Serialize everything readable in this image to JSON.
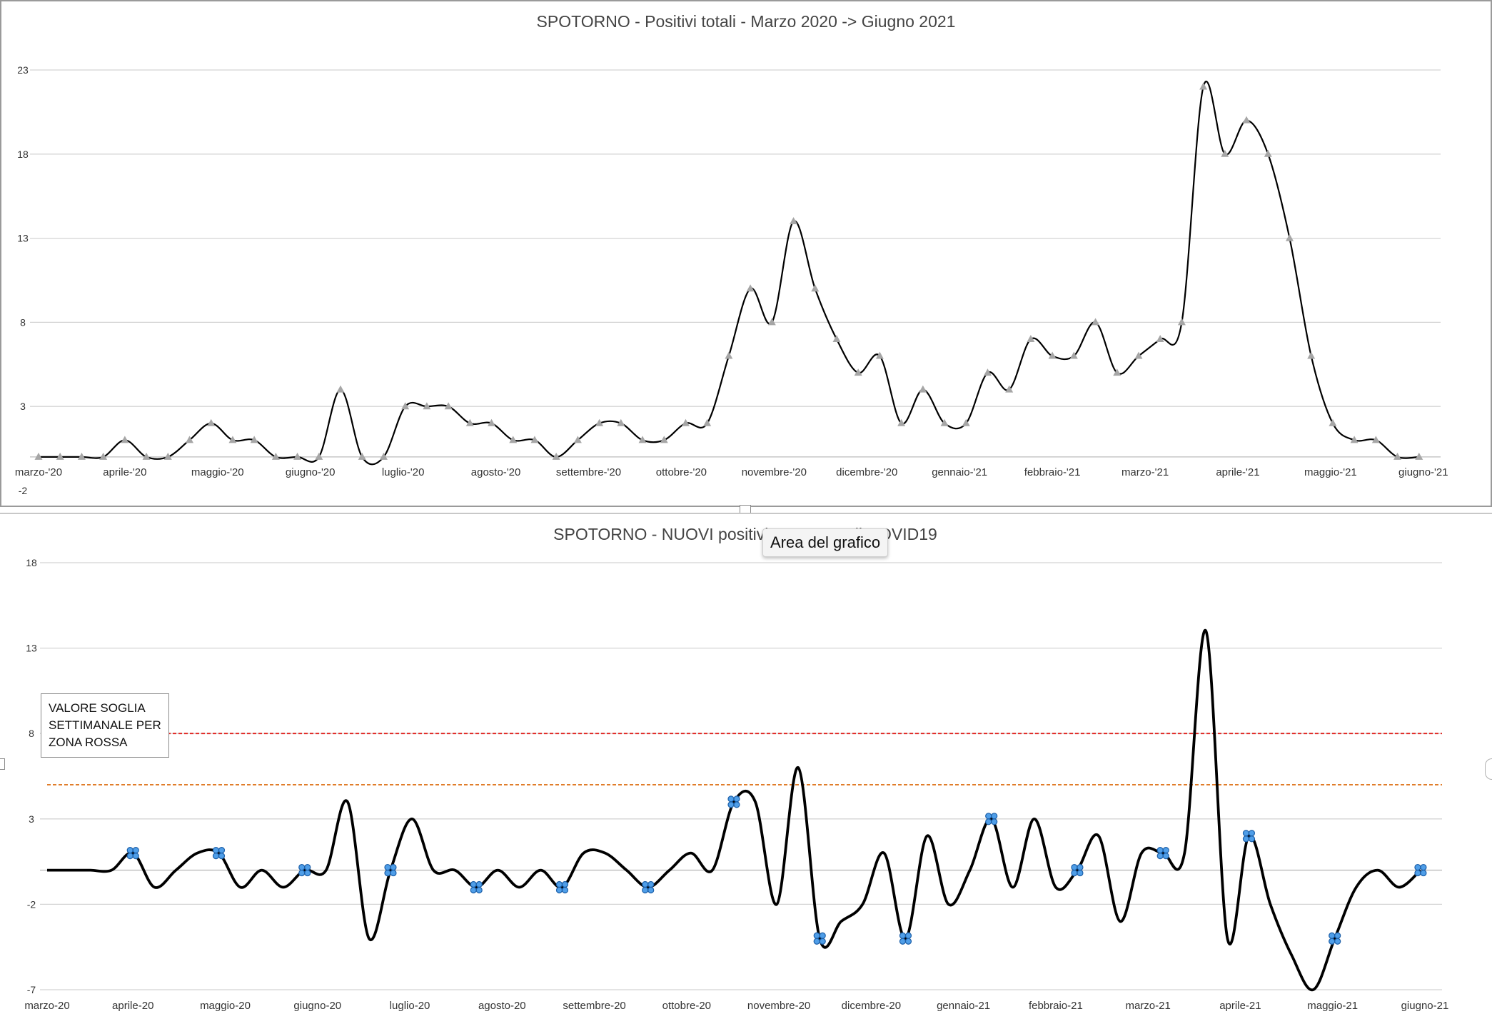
{
  "chart_data": [
    {
      "type": "line",
      "title": "SPOTORNO - Positivi totali - Marzo 2020 -> Giugno 2021",
      "yticks": [
        23,
        18,
        13,
        8,
        3,
        -2
      ],
      "ylim": [
        -2,
        23
      ],
      "xlim": [
        0,
        65
      ],
      "grid": true,
      "month_ticks": [
        {
          "label": "marzo-'20",
          "x": 0
        },
        {
          "label": "aprile-'20",
          "x": 4
        },
        {
          "label": "maggio-'20",
          "x": 8.3
        },
        {
          "label": "giugno-'20",
          "x": 12.6
        },
        {
          "label": "luglio-'20",
          "x": 16.9
        },
        {
          "label": "agosto-'20",
          "x": 21.2
        },
        {
          "label": "settembre-'20",
          "x": 25.5
        },
        {
          "label": "ottobre-'20",
          "x": 29.8
        },
        {
          "label": "novembre-'20",
          "x": 34.1
        },
        {
          "label": "dicembre-'20",
          "x": 38.4
        },
        {
          "label": "gennaio-'21",
          "x": 42.7
        },
        {
          "label": "febbraio-'21",
          "x": 47
        },
        {
          "label": "marzo-'21",
          "x": 51.3
        },
        {
          "label": "aprile-'21",
          "x": 55.6
        },
        {
          "label": "maggio-'21",
          "x": 59.9
        },
        {
          "label": "giugno-'21",
          "x": 64.2
        }
      ],
      "series": [
        {
          "color": "#000000",
          "marker": "triangle",
          "marker_color": "#a6a6a6",
          "values": [
            0,
            0,
            0,
            0,
            1,
            0,
            0,
            1,
            2,
            1,
            1,
            0,
            0,
            0,
            4,
            0,
            0,
            3,
            3,
            3,
            2,
            2,
            1,
            1,
            0,
            1,
            2,
            2,
            1,
            1,
            2,
            2,
            6,
            10,
            8,
            14,
            10,
            7,
            5,
            6,
            2,
            4,
            2,
            2,
            5,
            4,
            7,
            6,
            6,
            8,
            5,
            6,
            7,
            8,
            22,
            18,
            20,
            18,
            13,
            6,
            2,
            1,
            1,
            0,
            0
          ]
        }
      ]
    },
    {
      "type": "line",
      "title": "SPOTORNO - NUOVI positivi - Un anno di COVID19",
      "yticks": [
        18,
        13,
        8,
        3,
        -2,
        -7
      ],
      "ylim": [
        -7,
        18
      ],
      "xlim": [
        0,
        65
      ],
      "grid": true,
      "month_ticks": [
        {
          "label": "marzo-20",
          "x": 0
        },
        {
          "label": "aprile-20",
          "x": 4
        },
        {
          "label": "maggio-20",
          "x": 8.3
        },
        {
          "label": "giugno-20",
          "x": 12.6
        },
        {
          "label": "luglio-20",
          "x": 16.9
        },
        {
          "label": "agosto-20",
          "x": 21.2
        },
        {
          "label": "settembre-20",
          "x": 25.5
        },
        {
          "label": "ottobre-20",
          "x": 29.8
        },
        {
          "label": "novembre-20",
          "x": 34.1
        },
        {
          "label": "dicembre-20",
          "x": 38.4
        },
        {
          "label": "gennaio-21",
          "x": 42.7
        },
        {
          "label": "febbraio-21",
          "x": 47
        },
        {
          "label": "marzo-21",
          "x": 51.3
        },
        {
          "label": "aprile-21",
          "x": 55.6
        },
        {
          "label": "maggio-21",
          "x": 59.9
        },
        {
          "label": "giugno-21",
          "x": 64.2
        }
      ],
      "series": [
        {
          "color": "#000000",
          "values": [
            0,
            0,
            0,
            0,
            1,
            -1,
            0,
            1,
            1,
            -1,
            0,
            -1,
            0,
            0,
            4,
            -4,
            0,
            3,
            0,
            0,
            -1,
            0,
            -1,
            0,
            -1,
            1,
            1,
            0,
            -1,
            0,
            1,
            0,
            4,
            4,
            -2,
            6,
            -4,
            -3,
            -2,
            1,
            -4,
            2,
            -2,
            0,
            3,
            -1,
            3,
            -1,
            0,
            2,
            -3,
            1,
            1,
            1,
            14,
            -4,
            2,
            -2,
            -5,
            -7,
            -4,
            -1,
            0,
            -1,
            0
          ]
        }
      ],
      "highlighted_points": [
        {
          "x": 4,
          "y": 1
        },
        {
          "x": 8,
          "y": 1
        },
        {
          "x": 12,
          "y": 0
        },
        {
          "x": 16,
          "y": 0
        },
        {
          "x": 20,
          "y": -1
        },
        {
          "x": 24,
          "y": -1
        },
        {
          "x": 28,
          "y": -1
        },
        {
          "x": 32,
          "y": 4
        },
        {
          "x": 36,
          "y": -4
        },
        {
          "x": 40,
          "y": -4
        },
        {
          "x": 44,
          "y": 3
        },
        {
          "x": 48,
          "y": 0
        },
        {
          "x": 52,
          "y": 1
        },
        {
          "x": 56,
          "y": 2
        },
        {
          "x": 60,
          "y": -4
        },
        {
          "x": 64,
          "y": 0
        }
      ],
      "threshold_lines": [
        {
          "y": 8,
          "color": "#e0201b"
        },
        {
          "y": 5,
          "color": "#e07b27"
        }
      ],
      "legend_box_text": "VALORE SOGLIA SETTIMANALE PER ZONA ROSSA",
      "tooltip_text": "Area del grafico"
    }
  ]
}
